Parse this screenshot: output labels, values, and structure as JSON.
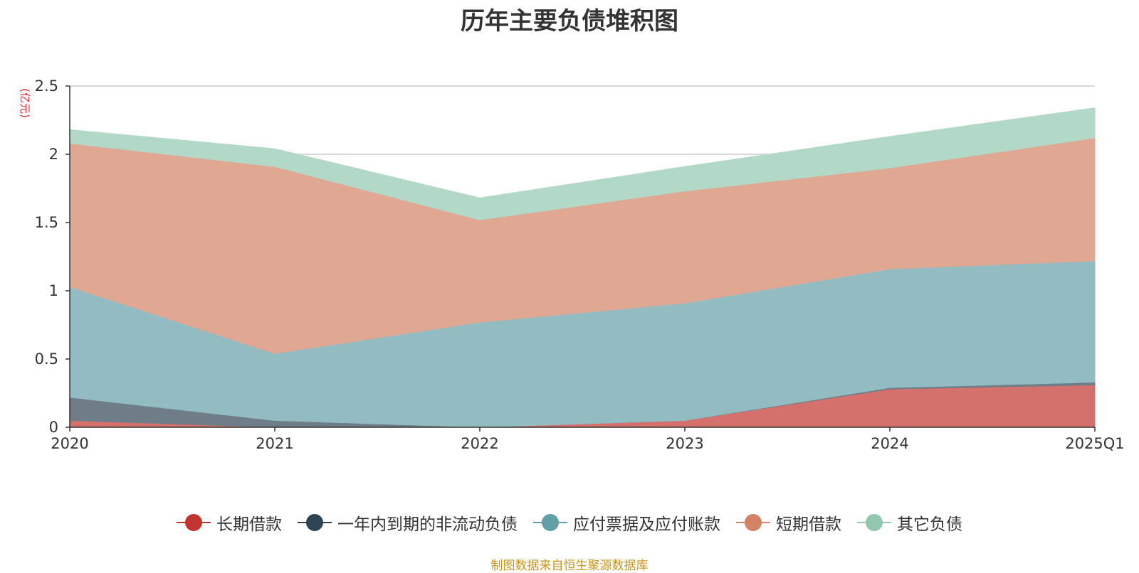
{
  "chart_data": {
    "type": "area",
    "stacked": true,
    "title": "历年主要负债堆积图",
    "unit_label": "(亿元)",
    "categories": [
      "2020",
      "2021",
      "2022",
      "2023",
      "2024",
      "2025Q1"
    ],
    "ylim": [
      0,
      2.5
    ],
    "yticks": [
      "0",
      "0.5",
      "1",
      "1.5",
      "2",
      "2.5"
    ],
    "grid": true,
    "legend_position": "bottom",
    "series": [
      {
        "name": "长期借款",
        "values": [
          0.05,
          0.0,
          0.0,
          0.05,
          0.28,
          0.31
        ],
        "color": "#c23531",
        "fill": "#d5716d"
      },
      {
        "name": "一年内到期的非流动负债",
        "values": [
          0.17,
          0.05,
          0.0,
          0.0,
          0.01,
          0.02
        ],
        "color": "#2f4554",
        "fill": "#6f7d88"
      },
      {
        "name": "应付票据及应付账款",
        "values": [
          0.81,
          0.49,
          0.77,
          0.86,
          0.87,
          0.89
        ],
        "color": "#61a0a8",
        "fill": "#92bcc2"
      },
      {
        "name": "短期借款",
        "values": [
          1.05,
          1.37,
          0.75,
          0.82,
          0.74,
          0.9
        ],
        "color": "#d48265",
        "fill": "#e0a793"
      },
      {
        "name": "其它负债",
        "values": [
          0.1,
          0.13,
          0.16,
          0.18,
          0.23,
          0.22
        ],
        "color": "#91c7ae",
        "fill": "#b2d9c7"
      }
    ]
  },
  "source_note": "制图数据来自恒生聚源数据库"
}
